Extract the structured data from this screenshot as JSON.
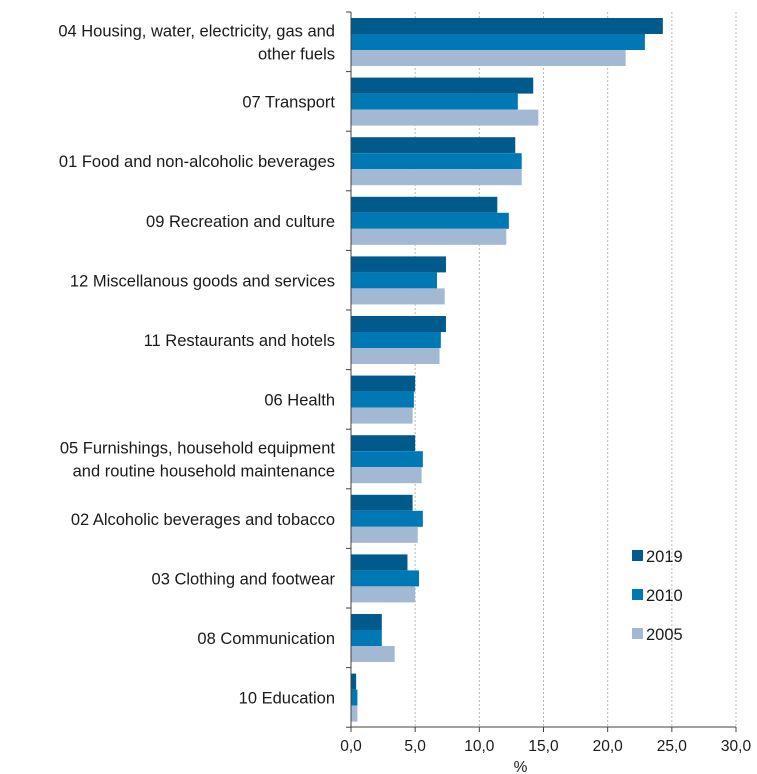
{
  "chart_data": {
    "type": "bar",
    "orientation": "horizontal",
    "categories": [
      [
        "04 Housing, water, electricity, gas and",
        "other fuels"
      ],
      [
        "07 Transport"
      ],
      [
        "01 Food and non-alcoholic beverages"
      ],
      [
        "09 Recreation and culture"
      ],
      [
        "12 Miscellanous goods and services"
      ],
      [
        "11 Restaurants and hotels"
      ],
      [
        "06 Health"
      ],
      [
        "05 Furnishings, household equipment",
        "and routine household maintenance"
      ],
      [
        "02 Alcoholic beverages and tobacco"
      ],
      [
        "03 Clothing and footwear"
      ],
      [
        "08 Communication"
      ],
      [
        "10 Education"
      ]
    ],
    "series": [
      {
        "name": "2019",
        "color": "#005b8c",
        "values": [
          24.3,
          14.2,
          12.8,
          11.4,
          7.4,
          7.4,
          5.0,
          5.0,
          4.8,
          4.4,
          2.4,
          0.4
        ]
      },
      {
        "name": "2010",
        "color": "#0078b4",
        "values": [
          22.9,
          13.0,
          13.3,
          12.3,
          6.7,
          7.0,
          4.9,
          5.6,
          5.6,
          5.3,
          2.4,
          0.5
        ]
      },
      {
        "name": "2005",
        "color": "#a3b8d3",
        "values": [
          21.4,
          14.6,
          13.3,
          12.1,
          7.3,
          6.9,
          4.8,
          5.5,
          5.2,
          5.0,
          3.4,
          0.5
        ]
      }
    ],
    "xlim": [
      0,
      30
    ],
    "xticks": [
      "0,0",
      "5,0",
      "10,0",
      "15,0",
      "20,0",
      "25,0",
      "30,0"
    ],
    "xlabel": "%",
    "grid": "vertical dashed",
    "legend_position": "bottom-right"
  }
}
